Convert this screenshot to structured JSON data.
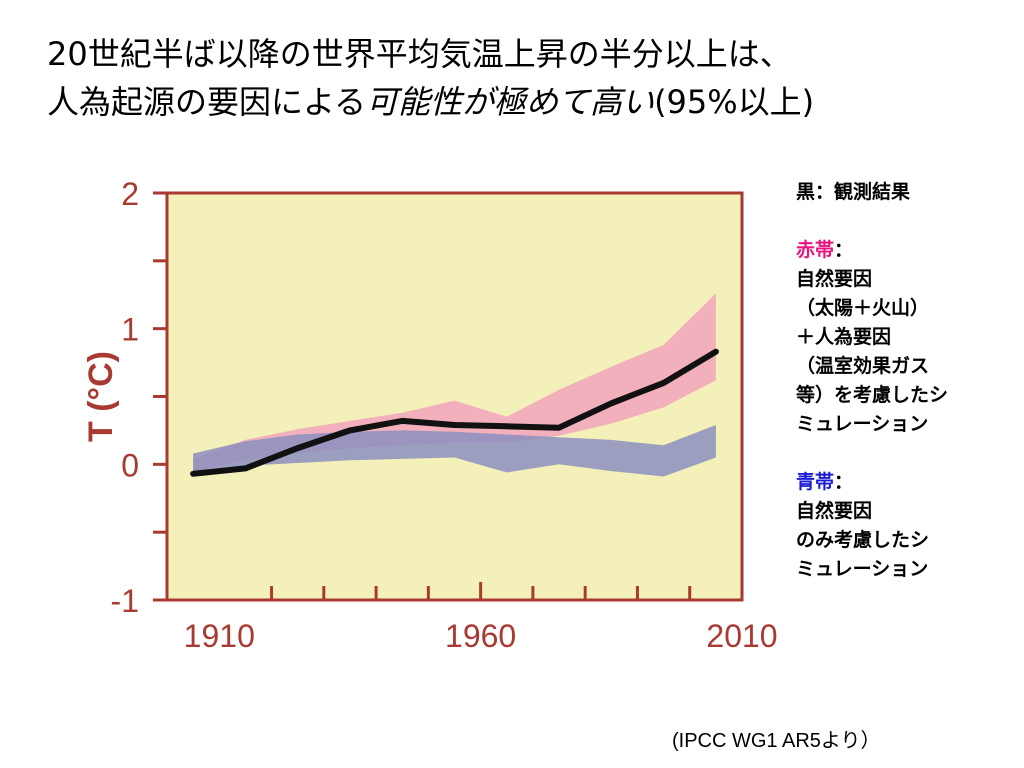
{
  "title": {
    "line1": "20世紀半ば以降の世界平均気温上昇の半分以上は、",
    "line2_plain": "人為起源の要因による",
    "line2_em": "可能性が極めて高い",
    "line2_suffix": "(95%以上)"
  },
  "legend": {
    "black": "黒：観測結果",
    "red_title": "赤帯",
    "red_colon": "：",
    "red_lines": [
      "自然要因",
      "（太陽＋火山）",
      "＋人為要因",
      "（温室効果ガス",
      "等）を考慮したシ",
      "ミュレーション"
    ],
    "blue_title": "青帯",
    "blue_colon": "：",
    "blue_lines": [
      "自然要因",
      "のみ考慮したシ",
      "ミュレーション"
    ]
  },
  "source": "(IPCC WG1 AR5より）",
  "colors": {
    "axis": "#a83a32",
    "plot_bg": "#f3f0b9",
    "frame": "#a83a32",
    "pink_band": "#f2a9bc",
    "blue_band": "#8c8fbf",
    "observed": "#111111",
    "legend_pink": "#e8157c",
    "legend_blue": "#1b1bd6"
  },
  "chart_data": {
    "type": "line",
    "ylabel": "T (°C)",
    "xlabel": "",
    "x_ticks": [
      1910,
      1960,
      2010
    ],
    "y_ticks": [
      2,
      1,
      0,
      -1
    ],
    "xlim": [
      1900,
      2010
    ],
    "ylim": [
      -1,
      2
    ],
    "grid": false,
    "series": [
      {
        "name": "黒：観測結果",
        "type": "line",
        "x": [
          1905,
          1915,
          1925,
          1935,
          1945,
          1955,
          1965,
          1975,
          1985,
          1995,
          2005
        ],
        "y": [
          -0.07,
          -0.03,
          0.12,
          0.25,
          0.32,
          0.29,
          0.28,
          0.27,
          0.45,
          0.6,
          0.83
        ]
      },
      {
        "name": "赤帯",
        "type": "band",
        "x": [
          1905,
          1915,
          1925,
          1935,
          1945,
          1955,
          1965,
          1975,
          1985,
          1995,
          2005
        ],
        "upper": [
          0.04,
          0.18,
          0.26,
          0.32,
          0.38,
          0.47,
          0.35,
          0.55,
          0.72,
          0.88,
          1.26
        ],
        "lower": [
          -0.06,
          0.04,
          0.08,
          0.12,
          0.14,
          0.16,
          0.16,
          0.21,
          0.3,
          0.42,
          0.62
        ]
      },
      {
        "name": "青帯",
        "type": "band",
        "x": [
          1905,
          1915,
          1925,
          1935,
          1945,
          1955,
          1965,
          1975,
          1985,
          1995,
          2005
        ],
        "upper": [
          0.08,
          0.17,
          0.22,
          0.24,
          0.25,
          0.24,
          0.22,
          0.2,
          0.18,
          0.14,
          0.29
        ],
        "lower": [
          -0.07,
          -0.01,
          0.01,
          0.03,
          0.04,
          0.05,
          -0.06,
          0.0,
          -0.05,
          -0.09,
          0.05
        ]
      }
    ]
  }
}
